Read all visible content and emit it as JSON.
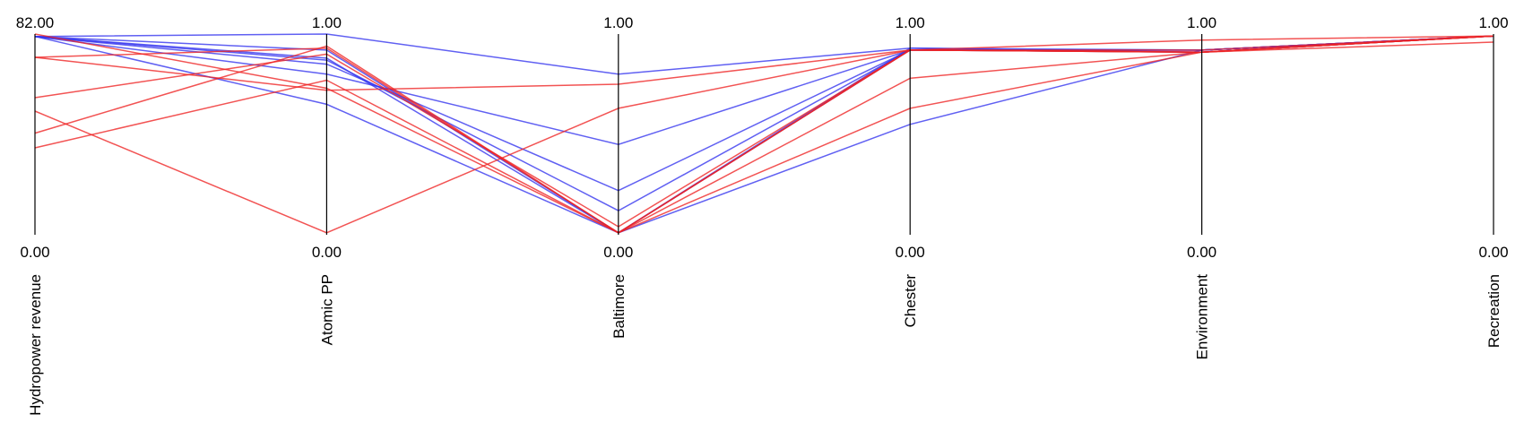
{
  "chart_data": {
    "type": "parallel-coordinates",
    "axes": [
      {
        "label": "Hydropower revenue",
        "max_label": "82.00",
        "min_label": "0.00",
        "range": [
          0,
          82
        ]
      },
      {
        "label": "Atomic PP",
        "max_label": "1.00",
        "min_label": "0.00",
        "range": [
          0,
          1
        ]
      },
      {
        "label": "Baltimore",
        "max_label": "1.00",
        "min_label": "0.00",
        "range": [
          0,
          1
        ]
      },
      {
        "label": "Chester",
        "max_label": "1.00",
        "min_label": "0.00",
        "range": [
          0,
          1
        ]
      },
      {
        "label": "Environment",
        "max_label": "1.00",
        "min_label": "0.00",
        "range": [
          0,
          1
        ]
      },
      {
        "label": "Recreation",
        "max_label": "1.00",
        "min_label": "0.00",
        "range": [
          0,
          1
        ]
      }
    ],
    "colors": {
      "blue": "#3333ee",
      "red": "#ee2222"
    },
    "lines": [
      {
        "color": "blue",
        "values": [
          81.0,
          1.0,
          0.8,
          0.93,
          0.91,
          0.99
        ]
      },
      {
        "color": "blue",
        "values": [
          81.0,
          0.8,
          0.45,
          0.92,
          0.91,
          0.99
        ]
      },
      {
        "color": "blue",
        "values": [
          81.0,
          0.85,
          0.22,
          0.92,
          0.92,
          0.99
        ]
      },
      {
        "color": "blue",
        "values": [
          81.0,
          0.87,
          0.12,
          0.92,
          0.92,
          0.99
        ]
      },
      {
        "color": "blue",
        "values": [
          81.0,
          0.92,
          0.01,
          0.93,
          0.92,
          0.99
        ]
      },
      {
        "color": "blue",
        "values": [
          81.0,
          0.65,
          0.01,
          0.92,
          0.92,
          0.99
        ]
      },
      {
        "color": "blue",
        "values": [
          81.0,
          0.88,
          0.01,
          0.55,
          0.92,
          0.99
        ]
      },
      {
        "color": "red",
        "values": [
          72.5,
          0.93,
          0.01,
          0.63,
          0.91,
          0.99
        ]
      },
      {
        "color": "red",
        "values": [
          72.5,
          0.72,
          0.75,
          0.92,
          0.91,
          0.99
        ]
      },
      {
        "color": "red",
        "values": [
          56.0,
          0.9,
          0.04,
          0.92,
          0.92,
          0.99
        ]
      },
      {
        "color": "red",
        "values": [
          50.5,
          0.01,
          0.63,
          0.92,
          0.91,
          0.99
        ]
      },
      {
        "color": "red",
        "values": [
          41.5,
          0.94,
          0.01,
          0.92,
          0.91,
          0.96
        ]
      },
      {
        "color": "red",
        "values": [
          35.5,
          0.77,
          0.01,
          0.78,
          0.91,
          0.99
        ]
      },
      {
        "color": "red",
        "values": [
          82.0,
          0.73,
          0.01,
          0.92,
          0.97,
          0.99
        ]
      }
    ]
  }
}
